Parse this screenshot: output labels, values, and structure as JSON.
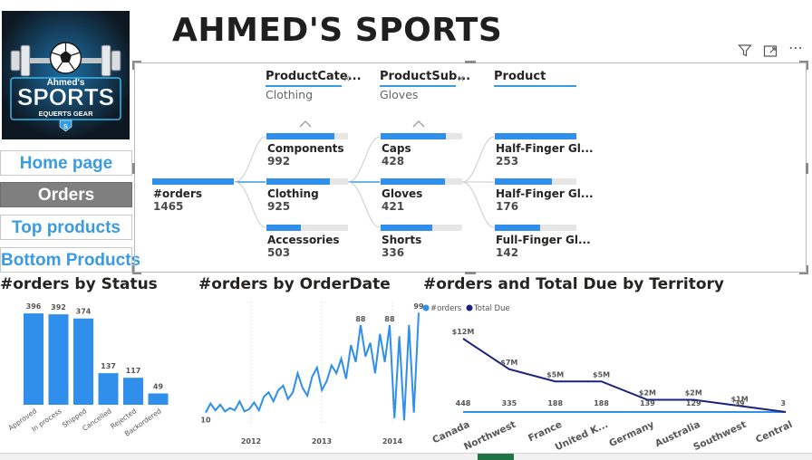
{
  "app": {
    "title": "AHMED'S SPORTS",
    "logo": {
      "line1": "Ahmed's",
      "line2": "SPORTS",
      "line3": "EQUERTS GEAR",
      "badge": "S"
    }
  },
  "nav": {
    "more": "⋯",
    "items": [
      {
        "label": "Home page",
        "active": false
      },
      {
        "label": "Orders",
        "active": true
      },
      {
        "label": "Top products",
        "active": false
      },
      {
        "label": "Bottom Products",
        "active": false
      }
    ]
  },
  "visual_header": {
    "filter_icon": "filter-icon",
    "focus_icon": "focus-mode-icon",
    "more": "⋯"
  },
  "decomposition_tree": {
    "root": {
      "label": "#orders",
      "value": "1465",
      "fill": 1.0
    },
    "levels": [
      {
        "header": "ProductCate...",
        "close": "×",
        "filter": "Clothing",
        "expand_icon": "chevron-up-icon",
        "nodes": [
          {
            "label": "Components",
            "value": "992",
            "fill": 0.83
          },
          {
            "label": "Clothing",
            "value": "925",
            "fill": 0.78
          },
          {
            "label": "Accessories",
            "value": "503",
            "fill": 0.42
          }
        ]
      },
      {
        "header": "ProductSub...",
        "close": "×",
        "filter": "Gloves",
        "expand_icon": "chevron-up-icon",
        "nodes": [
          {
            "label": "Caps",
            "value": "428",
            "fill": 0.8
          },
          {
            "label": "Gloves",
            "value": "421",
            "fill": 0.79
          },
          {
            "label": "Shorts",
            "value": "336",
            "fill": 0.63
          }
        ]
      },
      {
        "header": "Product",
        "close": "",
        "filter": "",
        "nodes": [
          {
            "label": "Half-Finger Gl...",
            "value": "253",
            "fill": 1.0
          },
          {
            "label": "Half-Finger Gl...",
            "value": "176",
            "fill": 0.7
          },
          {
            "label": "Full-Finger Gl...",
            "value": "142",
            "fill": 0.56
          }
        ]
      }
    ]
  },
  "charts": {
    "status": {
      "title": "#orders by Status",
      "color": "#2f8fea"
    },
    "orderdate": {
      "title": "#orders by OrderDate",
      "color": "#2f8fea"
    },
    "territory": {
      "title": "#orders and Total Due by Territory",
      "legend": [
        {
          "name": "#orders",
          "color": "#2f8fea"
        },
        {
          "name": "Total Due",
          "color": "#1a237e"
        }
      ]
    }
  },
  "chart_data": [
    {
      "type": "bar",
      "title": "#orders by Status",
      "categories": [
        "Approved",
        "In process",
        "Shipped",
        "Cancelled",
        "Rejected",
        "Backordered"
      ],
      "values": [
        396,
        392,
        374,
        137,
        117,
        49
      ],
      "ylim": [
        0,
        420
      ],
      "grid": false
    },
    {
      "type": "line",
      "title": "#orders by OrderDate",
      "x_ticks": [
        "2012",
        "2013",
        "2014"
      ],
      "series": [
        {
          "values": [
            10,
            18,
            12,
            17,
            11,
            14,
            12,
            20,
            11,
            13,
            19,
            12,
            24,
            28,
            20,
            30,
            34,
            22,
            28,
            45,
            32,
            25,
            42,
            50,
            30,
            38,
            52,
            45,
            58,
            40,
            70,
            55,
            88,
            60,
            72,
            45,
            80,
            55,
            88,
            5,
            78,
            3,
            88,
            10,
            99
          ]
        }
      ],
      "data_labels": [
        "10",
        "88",
        "88",
        "99"
      ],
      "ylim": [
        0,
        100
      ],
      "grid": true
    },
    {
      "type": "line",
      "title": "#orders and Total Due by Territory",
      "categories": [
        "Canada",
        "Northwest",
        "France",
        "United K...",
        "Germany",
        "Australia",
        "Southwest",
        "Central"
      ],
      "series": [
        {
          "name": "#orders",
          "values": [
            448,
            335,
            188,
            188,
            139,
            129,
            39,
            3
          ],
          "labels": [
            "448",
            "335",
            "188",
            "188",
            "139",
            "129",
            "39",
            "3"
          ]
        },
        {
          "name": "Total Due",
          "values": [
            12,
            7,
            5,
            5,
            2,
            2,
            1,
            0
          ],
          "labels": [
            "$12M",
            "$7M",
            "$5M",
            "$5M",
            "$2M",
            "$2M",
            "$1M",
            ""
          ]
        }
      ],
      "legend": "top-left"
    }
  ]
}
